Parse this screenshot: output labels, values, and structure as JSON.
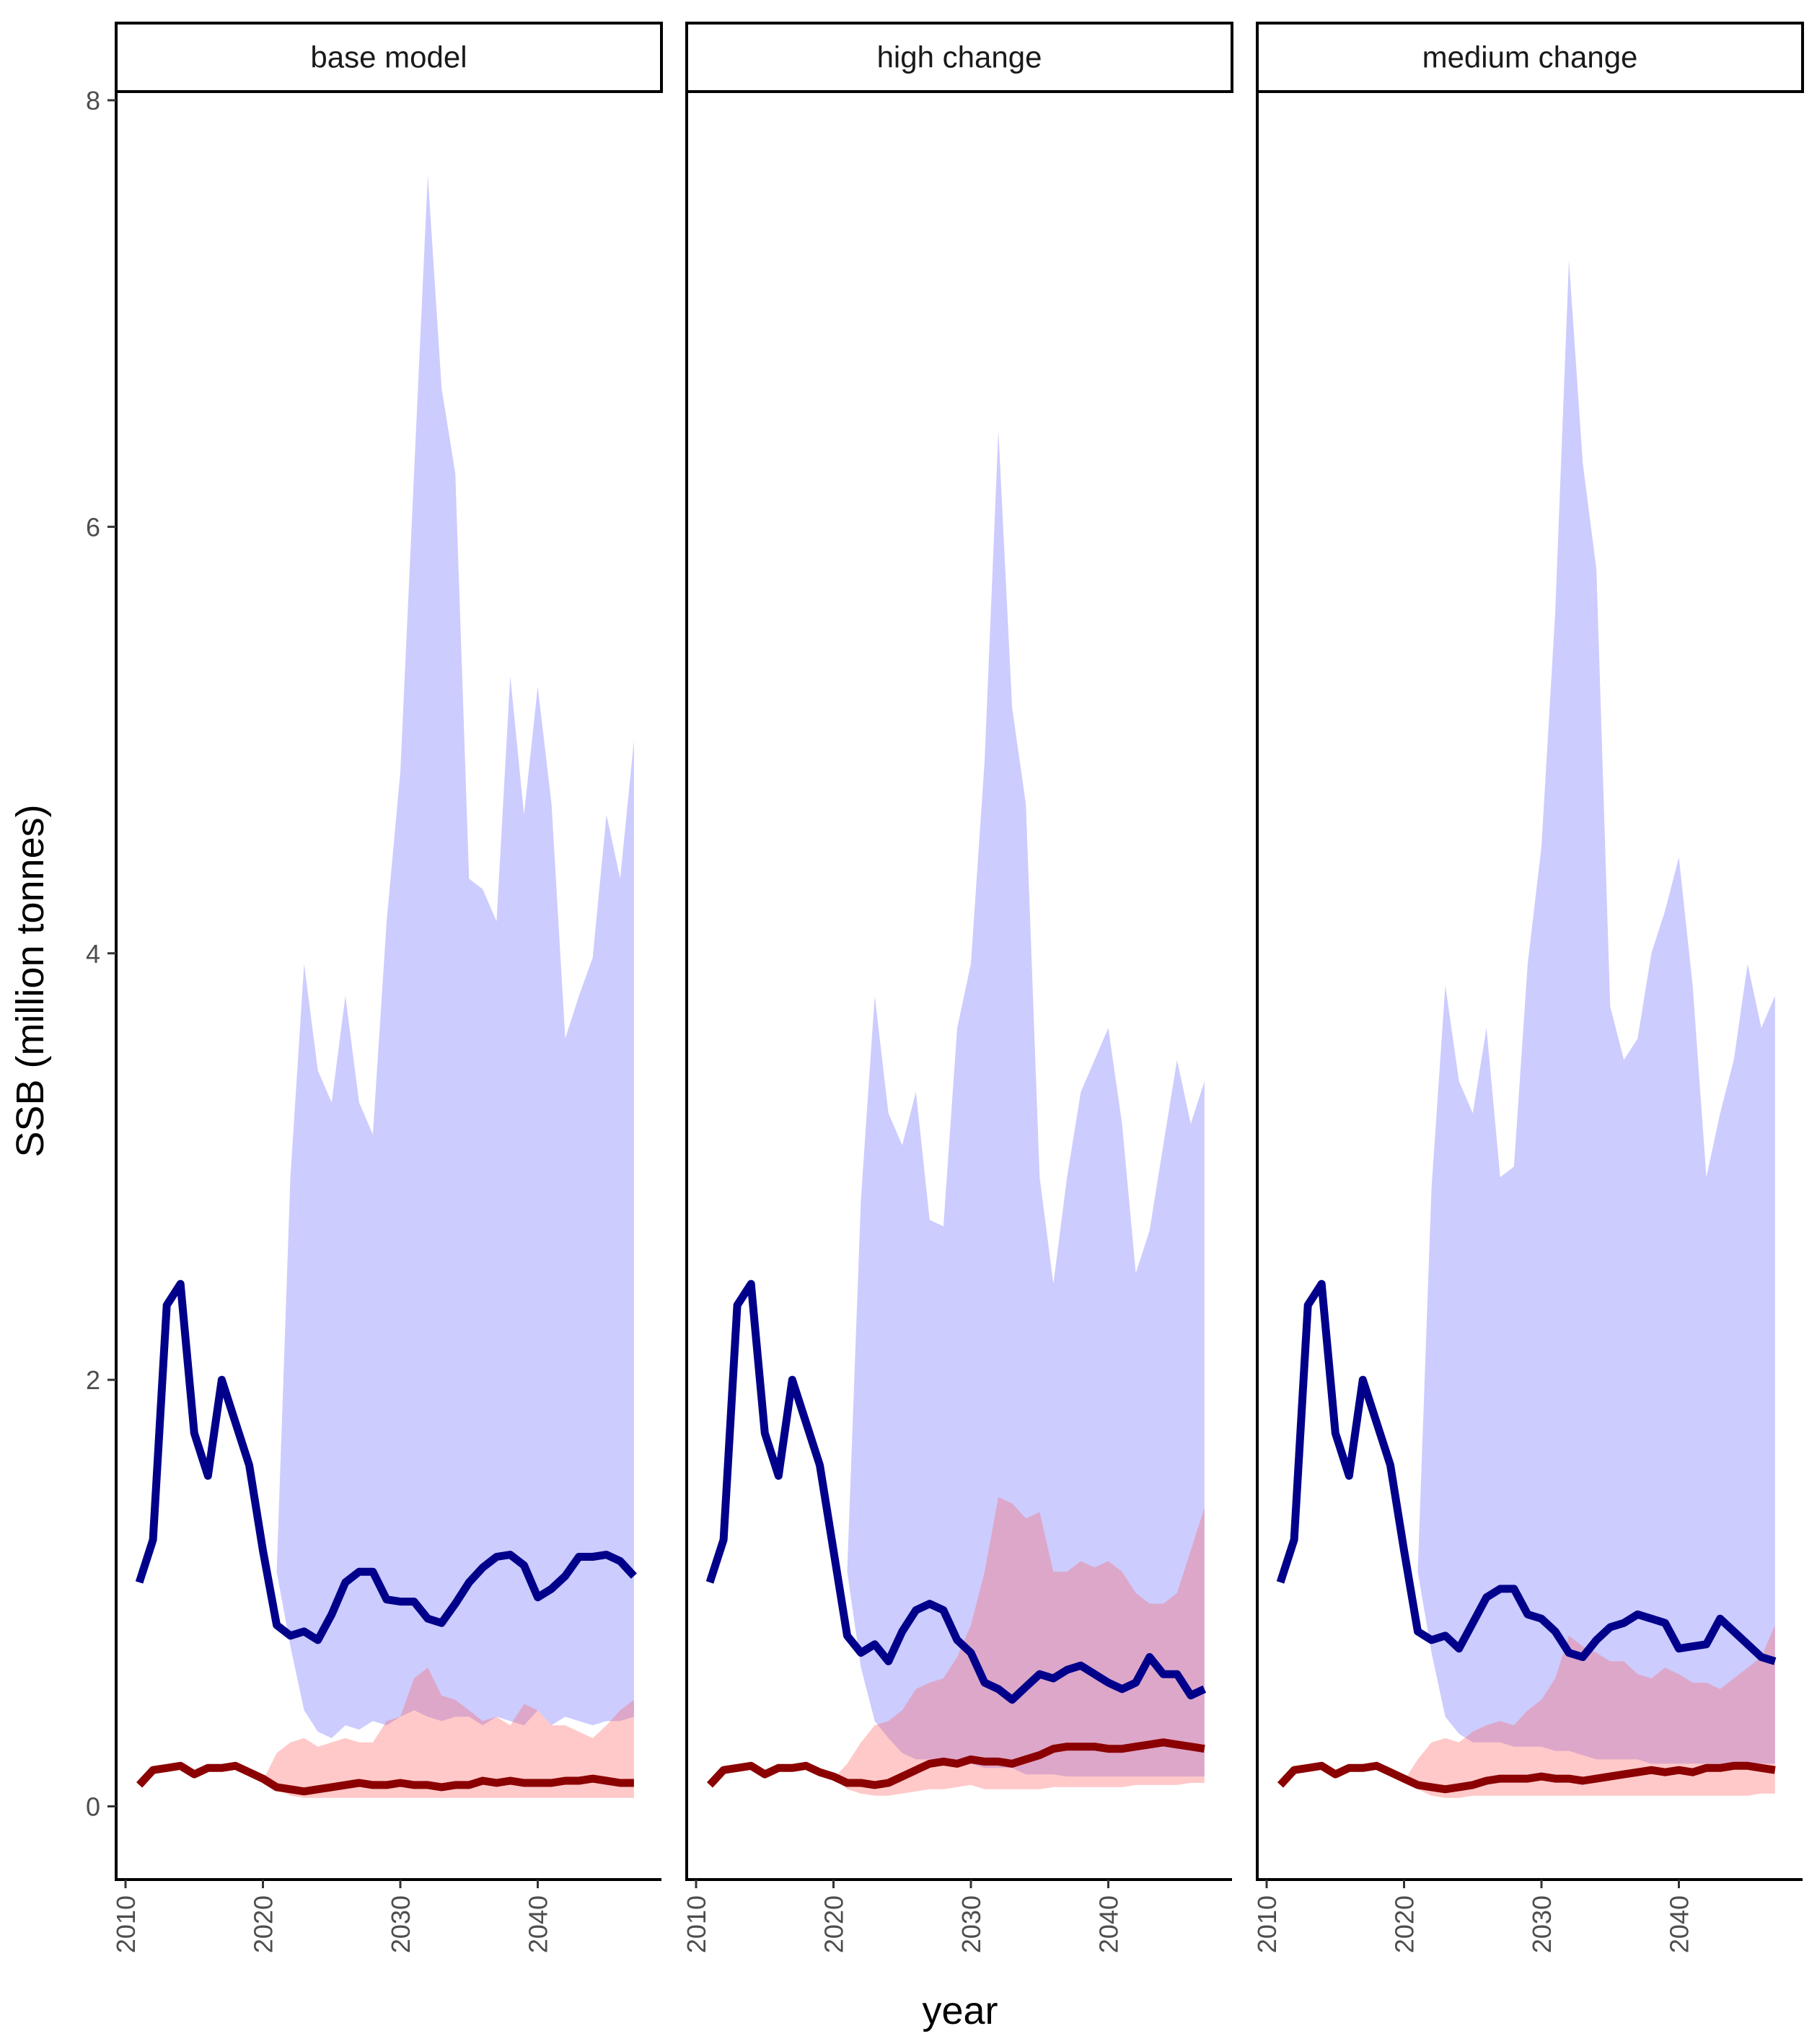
{
  "chart_data": {
    "type": "line",
    "xlabel": "year",
    "ylabel": "SSB (million tonnes)",
    "xlim": [
      2010,
      2047
    ],
    "ylim": [
      -0.35,
      8.1
    ],
    "x_ticks": [
      2010,
      2020,
      2030,
      2040
    ],
    "y_ticks": [
      0,
      2,
      4,
      6,
      8
    ],
    "grid": false,
    "legend": "none",
    "colors": {
      "series_1_line": "#00008b",
      "series_1_band": "#ccccff",
      "series_2_line": "#8b0000",
      "series_2_band": "#ffc8c8",
      "overlap_band": "#cba9dc"
    },
    "panels": [
      {
        "label": "base model",
        "series_1": {
          "x": [
            2011,
            2012,
            2013,
            2014,
            2015,
            2016,
            2017,
            2018,
            2019,
            2020,
            2021,
            2022,
            2023,
            2024,
            2025,
            2026,
            2027,
            2028,
            2029,
            2030,
            2031,
            2032,
            2033,
            2034,
            2035,
            2036,
            2037,
            2038,
            2039,
            2040,
            2041,
            2042,
            2043,
            2044,
            2045,
            2046,
            2047
          ],
          "y": [
            1.05,
            1.25,
            2.35,
            2.45,
            1.75,
            1.55,
            2.0,
            1.8,
            1.6,
            1.2,
            0.85,
            0.8,
            0.82,
            0.78,
            0.9,
            1.05,
            1.1,
            1.1,
            0.97,
            0.96,
            0.96,
            0.88,
            0.86,
            0.95,
            1.05,
            1.12,
            1.17,
            1.18,
            1.13,
            0.98,
            1.02,
            1.08,
            1.17,
            1.17,
            1.18,
            1.15,
            1.08
          ],
          "band_x": [
            2021,
            2022,
            2023,
            2024,
            2025,
            2026,
            2027,
            2028,
            2029,
            2030,
            2031,
            2032,
            2033,
            2034,
            2035,
            2036,
            2037,
            2038,
            2039,
            2040,
            2041,
            2042,
            2043,
            2044,
            2045,
            2046,
            2047
          ],
          "band_lo": [
            1.1,
            0.75,
            0.45,
            0.35,
            0.32,
            0.38,
            0.36,
            0.4,
            0.38,
            0.42,
            0.45,
            0.42,
            0.4,
            0.42,
            0.42,
            0.38,
            0.42,
            0.4,
            0.38,
            0.45,
            0.38,
            0.42,
            0.4,
            0.38,
            0.4,
            0.4,
            0.42
          ],
          "band_hi": [
            1.1,
            2.95,
            3.95,
            3.45,
            3.3,
            3.8,
            3.3,
            3.15,
            4.15,
            4.85,
            6.25,
            7.65,
            6.65,
            6.25,
            4.35,
            4.3,
            4.15,
            5.3,
            4.65,
            5.25,
            4.7,
            3.6,
            3.8,
            3.98,
            4.65,
            4.35,
            5.0
          ]
        },
        "series_2": {
          "x": [
            2011,
            2012,
            2013,
            2014,
            2015,
            2016,
            2017,
            2018,
            2019,
            2020,
            2021,
            2022,
            2023,
            2024,
            2025,
            2026,
            2027,
            2028,
            2029,
            2030,
            2031,
            2032,
            2033,
            2034,
            2035,
            2036,
            2037,
            2038,
            2039,
            2040,
            2041,
            2042,
            2043,
            2044,
            2045,
            2046,
            2047
          ],
          "y": [
            0.1,
            0.17,
            0.18,
            0.19,
            0.15,
            0.18,
            0.18,
            0.19,
            0.16,
            0.13,
            0.09,
            0.08,
            0.07,
            0.08,
            0.09,
            0.1,
            0.11,
            0.1,
            0.1,
            0.11,
            0.1,
            0.1,
            0.09,
            0.1,
            0.1,
            0.12,
            0.11,
            0.12,
            0.11,
            0.11,
            0.11,
            0.12,
            0.12,
            0.13,
            0.12,
            0.11,
            0.11
          ],
          "band_x": [
            2020,
            2021,
            2022,
            2023,
            2024,
            2025,
            2026,
            2027,
            2028,
            2029,
            2030,
            2031,
            2032,
            2033,
            2034,
            2035,
            2036,
            2037,
            2038,
            2039,
            2040,
            2041,
            2042,
            2043,
            2044,
            2045,
            2046,
            2047
          ],
          "band_lo": [
            0.12,
            0.08,
            0.05,
            0.04,
            0.04,
            0.04,
            0.04,
            0.04,
            0.04,
            0.04,
            0.04,
            0.04,
            0.04,
            0.04,
            0.04,
            0.04,
            0.04,
            0.04,
            0.04,
            0.04,
            0.04,
            0.04,
            0.04,
            0.04,
            0.04,
            0.04,
            0.04,
            0.04
          ],
          "band_hi": [
            0.12,
            0.25,
            0.3,
            0.32,
            0.28,
            0.3,
            0.32,
            0.3,
            0.3,
            0.4,
            0.42,
            0.6,
            0.65,
            0.52,
            0.5,
            0.45,
            0.4,
            0.42,
            0.38,
            0.48,
            0.45,
            0.38,
            0.38,
            0.35,
            0.32,
            0.38,
            0.45,
            0.5
          ]
        }
      },
      {
        "label": "high change",
        "series_1": {
          "x": [
            2011,
            2012,
            2013,
            2014,
            2015,
            2016,
            2017,
            2018,
            2019,
            2020,
            2021,
            2022,
            2023,
            2024,
            2025,
            2026,
            2027,
            2028,
            2029,
            2030,
            2031,
            2032,
            2033,
            2034,
            2035,
            2036,
            2037,
            2038,
            2039,
            2040,
            2041,
            2042,
            2043,
            2044,
            2045,
            2046,
            2047
          ],
          "y": [
            1.05,
            1.25,
            2.35,
            2.45,
            1.75,
            1.55,
            2.0,
            1.8,
            1.6,
            1.2,
            0.8,
            0.72,
            0.76,
            0.68,
            0.82,
            0.92,
            0.95,
            0.92,
            0.78,
            0.72,
            0.58,
            0.55,
            0.5,
            0.56,
            0.62,
            0.6,
            0.64,
            0.66,
            0.62,
            0.58,
            0.55,
            0.58,
            0.7,
            0.62,
            0.62,
            0.52,
            0.55
          ],
          "band_x": [
            2021,
            2022,
            2023,
            2024,
            2025,
            2026,
            2027,
            2028,
            2029,
            2030,
            2031,
            2032,
            2033,
            2034,
            2035,
            2036,
            2037,
            2038,
            2039,
            2040,
            2041,
            2042,
            2043,
            2044,
            2045,
            2046,
            2047
          ],
          "band_lo": [
            1.1,
            0.65,
            0.4,
            0.32,
            0.25,
            0.22,
            0.22,
            0.2,
            0.2,
            0.2,
            0.18,
            0.18,
            0.18,
            0.15,
            0.15,
            0.15,
            0.14,
            0.14,
            0.14,
            0.14,
            0.14,
            0.14,
            0.14,
            0.14,
            0.14,
            0.14,
            0.14
          ],
          "band_hi": [
            1.1,
            2.85,
            3.8,
            3.25,
            3.1,
            3.35,
            2.75,
            2.72,
            3.65,
            3.95,
            4.9,
            6.45,
            5.15,
            4.7,
            2.95,
            2.45,
            2.95,
            3.35,
            3.5,
            3.65,
            3.2,
            2.5,
            2.7,
            3.1,
            3.5,
            3.2,
            3.4
          ]
        },
        "series_2": {
          "x": [
            2011,
            2012,
            2013,
            2014,
            2015,
            2016,
            2017,
            2018,
            2019,
            2020,
            2021,
            2022,
            2023,
            2024,
            2025,
            2026,
            2027,
            2028,
            2029,
            2030,
            2031,
            2032,
            2033,
            2034,
            2035,
            2036,
            2037,
            2038,
            2039,
            2040,
            2041,
            2042,
            2043,
            2044,
            2045,
            2046,
            2047
          ],
          "y": [
            0.1,
            0.17,
            0.18,
            0.19,
            0.15,
            0.18,
            0.18,
            0.19,
            0.16,
            0.14,
            0.11,
            0.11,
            0.1,
            0.11,
            0.14,
            0.17,
            0.2,
            0.21,
            0.2,
            0.22,
            0.21,
            0.21,
            0.2,
            0.22,
            0.24,
            0.27,
            0.28,
            0.28,
            0.28,
            0.27,
            0.27,
            0.28,
            0.29,
            0.3,
            0.29,
            0.28,
            0.27
          ],
          "band_x": [
            2020,
            2021,
            2022,
            2023,
            2024,
            2025,
            2026,
            2027,
            2028,
            2029,
            2030,
            2031,
            2032,
            2033,
            2034,
            2035,
            2036,
            2037,
            2038,
            2039,
            2040,
            2041,
            2042,
            2043,
            2044,
            2045,
            2046,
            2047
          ],
          "band_lo": [
            0.13,
            0.08,
            0.06,
            0.05,
            0.05,
            0.06,
            0.07,
            0.08,
            0.08,
            0.09,
            0.1,
            0.08,
            0.08,
            0.08,
            0.08,
            0.08,
            0.09,
            0.09,
            0.09,
            0.09,
            0.09,
            0.09,
            0.1,
            0.1,
            0.1,
            0.1,
            0.11,
            0.11
          ],
          "band_hi": [
            0.13,
            0.2,
            0.3,
            0.38,
            0.4,
            0.45,
            0.55,
            0.58,
            0.6,
            0.7,
            0.85,
            1.1,
            1.45,
            1.42,
            1.35,
            1.38,
            1.1,
            1.1,
            1.15,
            1.12,
            1.15,
            1.1,
            1.0,
            0.95,
            0.95,
            1.0,
            1.2,
            1.4
          ]
        }
      },
      {
        "label": "medium change",
        "series_1": {
          "x": [
            2011,
            2012,
            2013,
            2014,
            2015,
            2016,
            2017,
            2018,
            2019,
            2020,
            2021,
            2022,
            2023,
            2024,
            2025,
            2026,
            2027,
            2028,
            2029,
            2030,
            2031,
            2032,
            2033,
            2034,
            2035,
            2036,
            2037,
            2038,
            2039,
            2040,
            2041,
            2042,
            2043,
            2044,
            2045,
            2046,
            2047
          ],
          "y": [
            1.05,
            1.25,
            2.35,
            2.45,
            1.75,
            1.55,
            2.0,
            1.8,
            1.6,
            1.2,
            0.82,
            0.78,
            0.8,
            0.74,
            0.86,
            0.98,
            1.02,
            1.02,
            0.9,
            0.88,
            0.82,
            0.72,
            0.7,
            0.78,
            0.84,
            0.86,
            0.9,
            0.88,
            0.86,
            0.74,
            0.75,
            0.76,
            0.88,
            0.82,
            0.76,
            0.7,
            0.68
          ],
          "band_x": [
            2021,
            2022,
            2023,
            2024,
            2025,
            2026,
            2027,
            2028,
            2029,
            2030,
            2031,
            2032,
            2033,
            2034,
            2035,
            2036,
            2037,
            2038,
            2039,
            2040,
            2041,
            2042,
            2043,
            2044,
            2045,
            2046,
            2047
          ],
          "band_lo": [
            1.1,
            0.72,
            0.42,
            0.34,
            0.3,
            0.3,
            0.3,
            0.28,
            0.28,
            0.28,
            0.26,
            0.26,
            0.24,
            0.22,
            0.22,
            0.22,
            0.22,
            0.2,
            0.2,
            0.2,
            0.2,
            0.2,
            0.2,
            0.2,
            0.2,
            0.2,
            0.2
          ],
          "band_hi": [
            1.1,
            2.9,
            3.85,
            3.4,
            3.25,
            3.65,
            2.95,
            3.0,
            3.95,
            4.5,
            5.6,
            7.25,
            6.3,
            5.8,
            3.75,
            3.5,
            3.6,
            4.0,
            4.2,
            4.45,
            3.85,
            2.95,
            3.25,
            3.5,
            3.95,
            3.65,
            3.8
          ]
        },
        "series_2": {
          "x": [
            2011,
            2012,
            2013,
            2014,
            2015,
            2016,
            2017,
            2018,
            2019,
            2020,
            2021,
            2022,
            2023,
            2024,
            2025,
            2026,
            2027,
            2028,
            2029,
            2030,
            2031,
            2032,
            2033,
            2034,
            2035,
            2036,
            2037,
            2038,
            2039,
            2040,
            2041,
            2042,
            2043,
            2044,
            2045,
            2046,
            2047
          ],
          "y": [
            0.1,
            0.17,
            0.18,
            0.19,
            0.15,
            0.18,
            0.18,
            0.19,
            0.16,
            0.13,
            0.1,
            0.09,
            0.08,
            0.09,
            0.1,
            0.12,
            0.13,
            0.13,
            0.13,
            0.14,
            0.13,
            0.13,
            0.12,
            0.13,
            0.14,
            0.15,
            0.16,
            0.17,
            0.16,
            0.17,
            0.16,
            0.18,
            0.18,
            0.19,
            0.19,
            0.18,
            0.17
          ],
          "band_x": [
            2020,
            2021,
            2022,
            2023,
            2024,
            2025,
            2026,
            2027,
            2028,
            2029,
            2030,
            2031,
            2032,
            2033,
            2034,
            2035,
            2036,
            2037,
            2038,
            2039,
            2040,
            2041,
            2042,
            2043,
            2044,
            2045,
            2046,
            2047
          ],
          "band_lo": [
            0.12,
            0.08,
            0.05,
            0.04,
            0.04,
            0.05,
            0.05,
            0.05,
            0.05,
            0.05,
            0.05,
            0.05,
            0.05,
            0.05,
            0.05,
            0.05,
            0.05,
            0.05,
            0.05,
            0.05,
            0.05,
            0.05,
            0.05,
            0.05,
            0.05,
            0.05,
            0.06,
            0.06
          ],
          "band_hi": [
            0.12,
            0.22,
            0.3,
            0.32,
            0.3,
            0.35,
            0.38,
            0.4,
            0.38,
            0.45,
            0.5,
            0.6,
            0.8,
            0.75,
            0.72,
            0.68,
            0.68,
            0.62,
            0.6,
            0.65,
            0.62,
            0.58,
            0.58,
            0.55,
            0.6,
            0.65,
            0.7,
            0.85
          ]
        }
      }
    ]
  }
}
